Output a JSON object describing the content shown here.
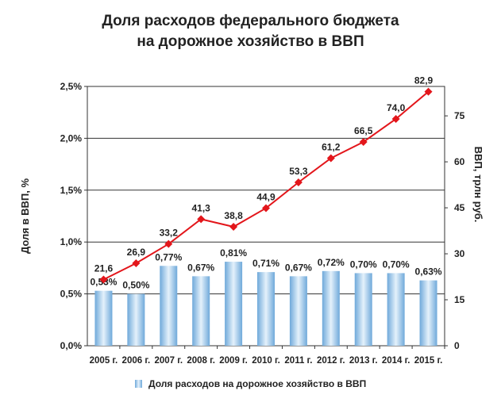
{
  "chart_data": {
    "type": "bar+line",
    "title_lines": [
      "Доля расходов федерального бюджета",
      "на дорожное хозяйство в ВВП"
    ],
    "categories": [
      "2005 г.",
      "2006 г.",
      "2007 г.",
      "2008 г.",
      "2009 г.",
      "2010 г.",
      "2011 г.",
      "2012 г.",
      "2013 г.",
      "2014 г.",
      "2015 г."
    ],
    "ylabel_left": "Доля в ВВП, %",
    "ylabel_right": "ВВП, трлн руб.",
    "left_axis": {
      "range": [
        0,
        2.5
      ],
      "ticks": [
        0,
        0.5,
        1.0,
        1.5,
        2.0,
        2.5
      ],
      "tick_labels": [
        "0,0%",
        "0,5%",
        "1,0%",
        "1,5%",
        "2,0%",
        "2,5%"
      ]
    },
    "right_axis": {
      "range": [
        0,
        84.6
      ],
      "ticks": [
        0,
        15,
        30,
        45,
        60,
        75
      ],
      "tick_labels": [
        "0",
        "15",
        "30",
        "45",
        "60",
        "75"
      ]
    },
    "grid": true,
    "series": [
      {
        "name": "Доля расходов на дорожное хозяйство в ВВП",
        "type": "bar",
        "axis": "left",
        "values": [
          0.53,
          0.5,
          0.77,
          0.67,
          0.81,
          0.71,
          0.67,
          0.72,
          0.7,
          0.7,
          0.63
        ],
        "labels": [
          "0,53%",
          "0,50%",
          "0,77%",
          "0,67%",
          "0,81%",
          "0,71%",
          "0,67%",
          "0,72%",
          "0,70%",
          "0,70%",
          "0,63%"
        ],
        "color": "#9cc8ea"
      },
      {
        "type": "line",
        "axis": "right",
        "values": [
          21.6,
          26.9,
          33.2,
          41.3,
          38.8,
          44.9,
          53.3,
          61.2,
          66.5,
          74.0,
          82.9
        ],
        "labels": [
          "21,6",
          "26,9",
          "33,2",
          "41,3",
          "38,8",
          "44,9",
          "53,3",
          "61,2",
          "66,5",
          "74,0",
          "82,9"
        ],
        "color": "#e3161b"
      }
    ],
    "legend_position": "bottom"
  }
}
